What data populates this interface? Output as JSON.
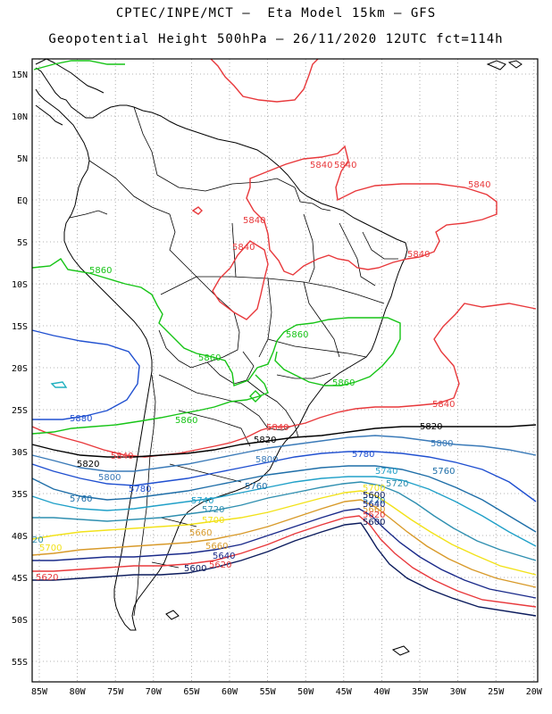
{
  "title_line1": "CPTEC/INPE/MCT –  Eta Model 15km – GFS",
  "title_line2": "Geopotential Height 500hPa – 26/11/2020 12UTC fct=114h",
  "lat_ticks": [
    "15N",
    "10N",
    "5N",
    "EQ",
    "5S",
    "10S",
    "15S",
    "20S",
    "25S",
    "30S",
    "35S",
    "40S",
    "45S",
    "50S",
    "55S"
  ],
  "lon_ticks": [
    "85W",
    "80W",
    "75W",
    "70W",
    "65W",
    "60W",
    "55W",
    "50W",
    "45W",
    "40W",
    "35W",
    "30W",
    "25W",
    "20W"
  ],
  "contour_colors": {
    "5600": "#0a1a5c",
    "5620": "#e8383b",
    "5640": "#1a2a8a",
    "5660": "#d89a2a",
    "5700": "#f2e21a",
    "5720": "#2f8fb0",
    "5740": "#20a0c8",
    "5760": "#1e6ea8",
    "5780": "#1f4fd0",
    "5800": "#3a7ab8",
    "5820": "#000000",
    "5840": "#e8383b",
    "5860": "#16c416",
    "5880": "#2050d0"
  },
  "contour_labels": [
    {
      "id": "5840-a",
      "text": "5840",
      "lvl": "5840"
    },
    {
      "id": "5840-b",
      "text": "5840",
      "lvl": "5840"
    },
    {
      "id": "5840-c",
      "text": "5840",
      "lvl": "5840"
    },
    {
      "id": "5840-d",
      "text": "5840",
      "lvl": "5840"
    },
    {
      "id": "5840-e",
      "text": "5840",
      "lvl": "5840"
    },
    {
      "id": "5840-f",
      "text": "5840",
      "lvl": "5840"
    },
    {
      "id": "5840-g",
      "text": "5840",
      "lvl": "5840"
    },
    {
      "id": "5840-h",
      "text": "5840",
      "lvl": "5840"
    },
    {
      "id": "5840-i",
      "text": "5840",
      "lvl": "5840"
    },
    {
      "id": "5860-a",
      "text": "5860",
      "lvl": "5860"
    },
    {
      "id": "5860-b",
      "text": "5860",
      "lvl": "5860"
    },
    {
      "id": "5860-c",
      "text": "5860",
      "lvl": "5860"
    },
    {
      "id": "5860-d",
      "text": "5860",
      "lvl": "5860"
    },
    {
      "id": "5860-e",
      "text": "5860",
      "lvl": "5860"
    },
    {
      "id": "5880-a",
      "text": "5880",
      "lvl": "5880"
    },
    {
      "id": "5820-a",
      "text": "5820",
      "lvl": "5820"
    },
    {
      "id": "5820-b",
      "text": "5820",
      "lvl": "5820"
    },
    {
      "id": "5820-c",
      "text": "5820",
      "lvl": "5820"
    },
    {
      "id": "5800-a",
      "text": "5800",
      "lvl": "5800"
    },
    {
      "id": "5800-b",
      "text": "5800",
      "lvl": "5800"
    },
    {
      "id": "5800-c",
      "text": "5800",
      "lvl": "5800"
    },
    {
      "id": "5780-a",
      "text": "5780",
      "lvl": "5780"
    },
    {
      "id": "5780-b",
      "text": "5780",
      "lvl": "5780"
    },
    {
      "id": "5760-a",
      "text": "5760",
      "lvl": "5760"
    },
    {
      "id": "5760-b",
      "text": "5760",
      "lvl": "5760"
    },
    {
      "id": "5760-c",
      "text": "5760",
      "lvl": "5760"
    },
    {
      "id": "5740-a",
      "text": "5740",
      "lvl": "5740"
    },
    {
      "id": "5740-b",
      "text": "5740",
      "lvl": "5740"
    },
    {
      "id": "5720-a",
      "text": "5720",
      "lvl": "5720"
    },
    {
      "id": "5720-b",
      "text": "5720",
      "lvl": "5720"
    },
    {
      "id": "5720-c",
      "text": "5720",
      "lvl": "5720"
    },
    {
      "id": "5700-a",
      "text": "5700",
      "lvl": "5700"
    },
    {
      "id": "5700-b",
      "text": "5700",
      "lvl": "5700"
    },
    {
      "id": "5700-c",
      "text": "5700",
      "lvl": "5700"
    },
    {
      "id": "5660-a",
      "text": "5660",
      "lvl": "5660"
    },
    {
      "id": "5660-b",
      "text": "5660",
      "lvl": "5660"
    },
    {
      "id": "5660-c",
      "text": "5660",
      "lvl": "5660"
    },
    {
      "id": "5640-a",
      "text": "5640",
      "lvl": "5640"
    },
    {
      "id": "5640-b",
      "text": "5640",
      "lvl": "5640"
    },
    {
      "id": "5620-a",
      "text": "5620",
      "lvl": "5620"
    },
    {
      "id": "5620-b",
      "text": "5620",
      "lvl": "5620"
    },
    {
      "id": "5620-c",
      "text": "5620",
      "lvl": "5620"
    },
    {
      "id": "5600-a",
      "text": "5600",
      "lvl": "5600"
    },
    {
      "id": "5600-b",
      "text": "5600",
      "lvl": "5600"
    },
    {
      "id": "5600-c",
      "text": "5600",
      "lvl": "5600"
    },
    {
      "id": "20-a",
      "text": "20",
      "lvl": "5720"
    }
  ]
}
